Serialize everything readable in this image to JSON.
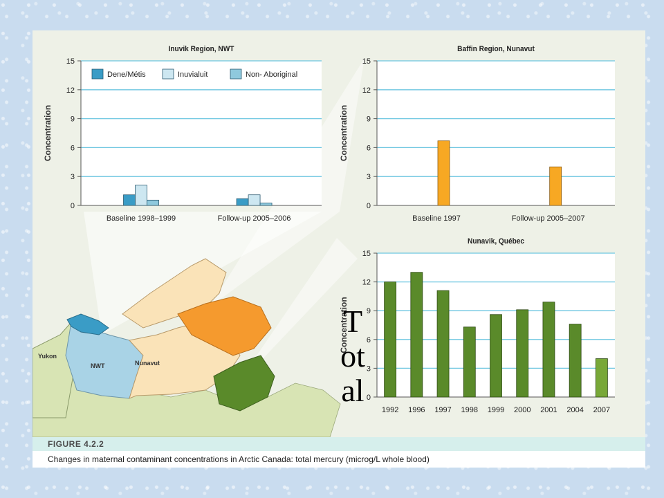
{
  "caption": {
    "figure_label": "FIGURE 4.2.2",
    "text": "Changes in maternal contaminant concentrations in Arctic Canada: total mercury (microg/L whole blood)"
  },
  "overlay_text": "Total",
  "map_labels": {
    "yukon": "Yukon",
    "nwt": "NWT",
    "nunavut": "Nunavut"
  },
  "colors": {
    "dene": "#3a9cc6",
    "inuvialuit": "#cde7f1",
    "non_aboriginal": "#8fc9dd",
    "baffin": "#f7a823",
    "nunavik": "#5a8a2a",
    "nunavik_last": "#78a838",
    "grid": "#6cc6e0"
  },
  "chart_data": [
    {
      "id": "inuvik",
      "type": "bar",
      "title": "Inuvik Region, NWT",
      "xlabel": "",
      "ylabel": "Concentration",
      "ylim": [
        0,
        15
      ],
      "yticks": [
        0,
        3,
        6,
        9,
        12,
        15
      ],
      "grid": true,
      "legend": "top",
      "categories": [
        "Baseline 1998–1999",
        "Follow-up 2005–2006"
      ],
      "series": [
        {
          "name": "Dene/Métis",
          "values": [
            1.1,
            0.7
          ]
        },
        {
          "name": "Inuvialuit",
          "values": [
            2.1,
            1.1
          ]
        },
        {
          "name": "Non- Aboriginal",
          "values": [
            0.55,
            0.25
          ]
        }
      ]
    },
    {
      "id": "baffin",
      "type": "bar",
      "title": "Baffin Region, Nunavut",
      "xlabel": "",
      "ylabel": "Concentration",
      "ylim": [
        0,
        15
      ],
      "yticks": [
        0,
        3,
        6,
        9,
        12,
        15
      ],
      "grid": true,
      "categories": [
        "Baseline 1997",
        "Follow-up 2005–2007"
      ],
      "values": [
        6.7,
        4.0
      ]
    },
    {
      "id": "nunavik",
      "type": "bar",
      "title": "Nunavik, Québec",
      "xlabel": "",
      "ylabel": "Concentration",
      "ylim": [
        0,
        15
      ],
      "yticks": [
        0,
        3,
        6,
        9,
        12,
        15
      ],
      "grid": true,
      "categories": [
        "1992",
        "1996",
        "1997",
        "1998",
        "1999",
        "2000",
        "2001",
        "2004",
        "2007"
      ],
      "values": [
        12.0,
        13.0,
        11.1,
        7.3,
        8.6,
        9.1,
        9.9,
        7.6,
        4.0
      ]
    }
  ]
}
